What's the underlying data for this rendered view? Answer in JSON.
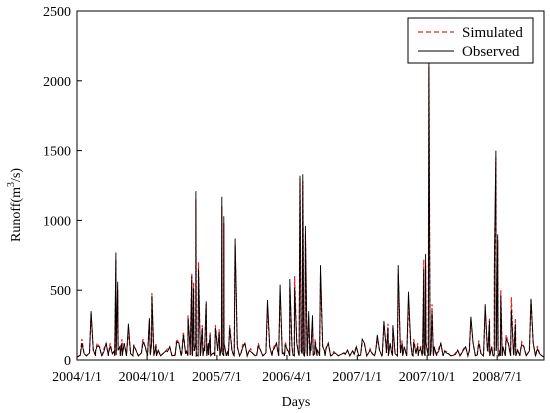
{
  "chart_data": {
    "type": "line",
    "xlabel": "Days",
    "ylabel_main": "Runoff(m",
    "ylabel_sup": "3",
    "ylabel_tail": "/s)",
    "ylim": [
      0,
      2500
    ],
    "yticks": [
      0,
      500,
      1000,
      1500,
      2000,
      2500
    ],
    "xlim": [
      "2004-01-01",
      "2008-12-31"
    ],
    "xticks": [
      {
        "date": "2004-01-01",
        "label": "2004/1/1"
      },
      {
        "date": "2004-10-01",
        "label": "2004/10/1"
      },
      {
        "date": "2005-07-01",
        "label": "2005/7/1"
      },
      {
        "date": "2006-04-01",
        "label": "2006/4/1"
      },
      {
        "date": "2007-01-01",
        "label": "2007/1/1"
      },
      {
        "date": "2007-10-01",
        "label": "2007/10/1"
      },
      {
        "date": "2008-07-01",
        "label": "2008/7/1"
      }
    ],
    "legend_position": "top-right",
    "baseline": 20,
    "series": [
      {
        "name": "Simulated",
        "color": "#e8202a",
        "style": "dashed",
        "peaks": [
          [
            "2004-01-20",
            150
          ],
          [
            "2004-02-25",
            330
          ],
          [
            "2004-03-20",
            120
          ],
          [
            "2004-04-15",
            80
          ],
          [
            "2004-05-10",
            120
          ],
          [
            "2004-06-01",
            720
          ],
          [
            "2004-06-08",
            500
          ],
          [
            "2004-06-25",
            150
          ],
          [
            "2004-07-20",
            200
          ],
          [
            "2004-08-10",
            110
          ],
          [
            "2004-09-15",
            150
          ],
          [
            "2004-10-10",
            280
          ],
          [
            "2004-10-20",
            480
          ],
          [
            "2004-11-05",
            120
          ],
          [
            "2004-12-20",
            80
          ],
          [
            "2005-01-25",
            150
          ],
          [
            "2005-02-20",
            200
          ],
          [
            "2005-03-10",
            320
          ],
          [
            "2005-03-25",
            620
          ],
          [
            "2005-04-01",
            560
          ],
          [
            "2005-04-10",
            1150
          ],
          [
            "2005-04-20",
            700
          ],
          [
            "2005-05-05",
            250
          ],
          [
            "2005-05-20",
            400
          ],
          [
            "2005-06-05",
            200
          ],
          [
            "2005-06-25",
            250
          ],
          [
            "2005-07-10",
            220
          ],
          [
            "2005-07-20",
            1100
          ],
          [
            "2005-07-28",
            980
          ],
          [
            "2005-08-20",
            250
          ],
          [
            "2005-09-10",
            820
          ],
          [
            "2005-10-10",
            110
          ],
          [
            "2005-11-10",
            80
          ],
          [
            "2005-12-10",
            120
          ],
          [
            "2006-01-15",
            380
          ],
          [
            "2006-02-10",
            100
          ],
          [
            "2006-03-05",
            480
          ],
          [
            "2006-03-25",
            130
          ],
          [
            "2006-04-12",
            520
          ],
          [
            "2006-05-01",
            600
          ],
          [
            "2006-05-22",
            1300
          ],
          [
            "2006-06-02",
            1280
          ],
          [
            "2006-06-12",
            900
          ],
          [
            "2006-06-25",
            300
          ],
          [
            "2006-07-10",
            280
          ],
          [
            "2006-07-20",
            150
          ],
          [
            "2006-08-10",
            600
          ],
          [
            "2006-09-01",
            90
          ],
          [
            "2006-10-01",
            60
          ],
          [
            "2006-11-15",
            50
          ],
          [
            "2006-12-20",
            50
          ],
          [
            "2007-01-20",
            120
          ],
          [
            "2007-02-20",
            80
          ],
          [
            "2007-03-20",
            150
          ],
          [
            "2007-04-15",
            250
          ],
          [
            "2007-05-01",
            260
          ],
          [
            "2007-05-20",
            230
          ],
          [
            "2007-06-10",
            620
          ],
          [
            "2007-06-25",
            140
          ],
          [
            "2007-07-20",
            400
          ],
          [
            "2007-08-10",
            150
          ],
          [
            "2007-08-25",
            120
          ],
          [
            "2007-09-05",
            100
          ],
          [
            "2007-09-18",
            720
          ],
          [
            "2007-09-25",
            680
          ],
          [
            "2007-10-08",
            2100
          ],
          [
            "2007-10-20",
            400
          ],
          [
            "2007-11-15",
            80
          ],
          [
            "2007-12-15",
            60
          ],
          [
            "2008-01-20",
            50
          ],
          [
            "2008-02-20",
            80
          ],
          [
            "2008-03-20",
            290
          ],
          [
            "2008-04-20",
            140
          ],
          [
            "2008-05-15",
            350
          ],
          [
            "2008-06-01",
            300
          ],
          [
            "2008-06-20",
            650
          ],
          [
            "2008-06-26",
            1450
          ],
          [
            "2008-07-03",
            860
          ],
          [
            "2008-07-15",
            500
          ],
          [
            "2008-08-05",
            180
          ],
          [
            "2008-08-25",
            450
          ],
          [
            "2008-09-10",
            300
          ],
          [
            "2008-10-05",
            130
          ],
          [
            "2008-11-10",
            430
          ],
          [
            "2008-12-05",
            100
          ]
        ]
      },
      {
        "name": "Observed",
        "color": "#000000",
        "style": "solid",
        "peaks": [
          [
            "2004-01-20",
            120
          ],
          [
            "2004-02-25",
            350
          ],
          [
            "2004-03-20",
            100
          ],
          [
            "2004-04-15",
            60
          ],
          [
            "2004-05-10",
            100
          ],
          [
            "2004-06-01",
            770
          ],
          [
            "2004-06-08",
            560
          ],
          [
            "2004-06-25",
            120
          ],
          [
            "2004-07-20",
            260
          ],
          [
            "2004-08-10",
            100
          ],
          [
            "2004-09-15",
            130
          ],
          [
            "2004-10-10",
            300
          ],
          [
            "2004-10-20",
            460
          ],
          [
            "2004-11-05",
            100
          ],
          [
            "2004-12-20",
            60
          ],
          [
            "2005-01-25",
            130
          ],
          [
            "2005-02-20",
            180
          ],
          [
            "2005-03-10",
            300
          ],
          [
            "2005-03-25",
            600
          ],
          [
            "2005-04-01",
            520
          ],
          [
            "2005-04-10",
            1210
          ],
          [
            "2005-04-20",
            650
          ],
          [
            "2005-05-05",
            230
          ],
          [
            "2005-05-20",
            420
          ],
          [
            "2005-06-05",
            180
          ],
          [
            "2005-06-25",
            230
          ],
          [
            "2005-07-10",
            200
          ],
          [
            "2005-07-20",
            1170
          ],
          [
            "2005-07-28",
            1030
          ],
          [
            "2005-08-20",
            230
          ],
          [
            "2005-09-10",
            870
          ],
          [
            "2005-10-10",
            90
          ],
          [
            "2005-11-10",
            60
          ],
          [
            "2005-12-10",
            100
          ],
          [
            "2006-01-15",
            430
          ],
          [
            "2006-02-10",
            80
          ],
          [
            "2006-03-05",
            540
          ],
          [
            "2006-03-25",
            110
          ],
          [
            "2006-04-12",
            580
          ],
          [
            "2006-05-01",
            520
          ],
          [
            "2006-05-22",
            1320
          ],
          [
            "2006-06-02",
            1330
          ],
          [
            "2006-06-12",
            960
          ],
          [
            "2006-06-25",
            350
          ],
          [
            "2006-07-10",
            320
          ],
          [
            "2006-07-20",
            130
          ],
          [
            "2006-08-10",
            680
          ],
          [
            "2006-09-01",
            80
          ],
          [
            "2006-10-01",
            50
          ],
          [
            "2006-11-15",
            40
          ],
          [
            "2006-12-20",
            40
          ],
          [
            "2007-01-20",
            150
          ],
          [
            "2007-02-20",
            70
          ],
          [
            "2007-03-20",
            180
          ],
          [
            "2007-04-15",
            280
          ],
          [
            "2007-05-01",
            230
          ],
          [
            "2007-05-20",
            250
          ],
          [
            "2007-06-10",
            680
          ],
          [
            "2007-06-25",
            120
          ],
          [
            "2007-07-20",
            490
          ],
          [
            "2007-08-10",
            130
          ],
          [
            "2007-08-25",
            100
          ],
          [
            "2007-09-05",
            90
          ],
          [
            "2007-09-18",
            650
          ],
          [
            "2007-09-25",
            760
          ],
          [
            "2007-10-08",
            2150
          ],
          [
            "2007-10-20",
            350
          ],
          [
            "2007-11-15",
            60
          ],
          [
            "2007-12-15",
            50
          ],
          [
            "2008-01-20",
            40
          ],
          [
            "2008-02-20",
            70
          ],
          [
            "2008-03-20",
            310
          ],
          [
            "2008-04-20",
            120
          ],
          [
            "2008-05-15",
            400
          ],
          [
            "2008-06-01",
            280
          ],
          [
            "2008-06-20",
            700
          ],
          [
            "2008-06-26",
            1500
          ],
          [
            "2008-07-03",
            900
          ],
          [
            "2008-07-15",
            460
          ],
          [
            "2008-08-05",
            150
          ],
          [
            "2008-08-25",
            360
          ],
          [
            "2008-09-10",
            260
          ],
          [
            "2008-10-05",
            110
          ],
          [
            "2008-11-10",
            440
          ],
          [
            "2008-12-05",
            80
          ]
        ]
      }
    ]
  }
}
